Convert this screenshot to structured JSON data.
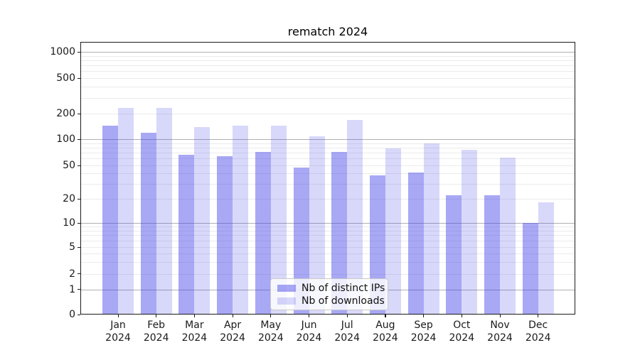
{
  "chart_data": {
    "type": "bar",
    "title": "rematch 2024",
    "categories": [
      "Jan 2024",
      "Feb 2024",
      "Mar 2024",
      "Apr 2024",
      "May 2024",
      "Jun 2024",
      "Jul 2024",
      "Aug 2024",
      "Sep 2024",
      "Oct 2024",
      "Nov 2024",
      "Dec 2024"
    ],
    "series": [
      {
        "name": "Nb of distinct IPs",
        "color": "#a8a8f4",
        "fill": "rgba(62,62,232,0.45)",
        "values": [
          145,
          120,
          66,
          64,
          72,
          47,
          72,
          38,
          41,
          22,
          22,
          10
        ]
      },
      {
        "name": "Nb of downloads",
        "color": "#d8d8fa",
        "fill": "rgba(62,62,232,0.2)",
        "values": [
          230,
          230,
          140,
          143,
          143,
          107,
          168,
          78,
          90,
          75,
          61,
          18
        ]
      }
    ],
    "xlabel": "",
    "ylabel": "",
    "yscale": "log-like (asinh, includes 0)",
    "yticks": [
      0,
      1,
      2,
      5,
      10,
      20,
      50,
      100,
      200,
      500,
      1000
    ],
    "ylim": [
      0,
      1150
    ],
    "grid": "major (dark) + minor (light) horizontal lines",
    "legend_position": "lower center, inside axes, semi-transparent box"
  }
}
